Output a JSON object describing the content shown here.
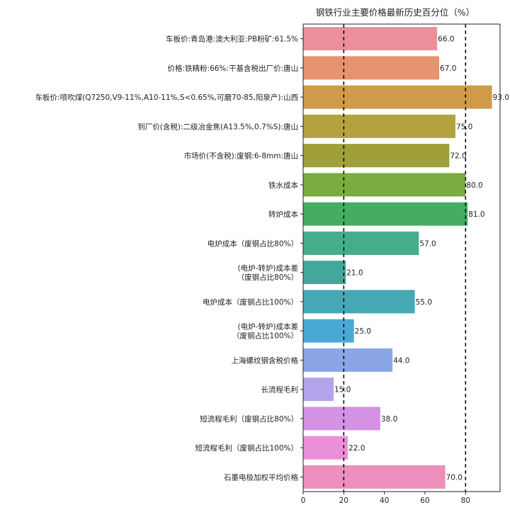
{
  "chart_data": {
    "type": "bar",
    "orientation": "horizontal",
    "title": "钢铁行业主要价格最新历史百分位（%）",
    "xlabel": "",
    "ylabel": "",
    "xlim": [
      0,
      97
    ],
    "xticks": [
      0,
      20,
      40,
      60,
      80
    ],
    "reference_lines": [
      20,
      80
    ],
    "grid": false,
    "categories": [
      [
        "车板价:青岛港:澳大利亚:PB粉矿:61.5%"
      ],
      [
        "价格:铁精粉:66%:干基含税出厂价:唐山"
      ],
      [
        "车板价:喷吹煤(Q7250,V9-11%,A10-11%,S<0.65%,可磨70-85,阳泉产):山西"
      ],
      [
        "到厂价(含税):二级冶金焦(A13.5%,0.7%S):唐山"
      ],
      [
        "市场价(不含税):废钢:6-8mm:唐山"
      ],
      [
        "铁水成本"
      ],
      [
        "转炉成本"
      ],
      [
        "电炉成本（废钢占比80%）"
      ],
      [
        "(电炉-转炉)成本差",
        "（废钢占比80%）"
      ],
      [
        "电炉成本（废钢占比100%）"
      ],
      [
        "(电炉-转炉)成本差",
        "（废钢占比100%）"
      ],
      [
        "上海螺纹钢含税价格"
      ],
      [
        "长流程毛利"
      ],
      [
        "短流程毛利（废钢占比80%）"
      ],
      [
        "短流程毛利（废钢占比100%）"
      ],
      [
        "石墨电极加权平均价格"
      ]
    ],
    "values": [
      66.0,
      67.0,
      93.0,
      75.0,
      72.0,
      80.0,
      81.0,
      57.0,
      21.0,
      55.0,
      25.0,
      44.0,
      15.0,
      38.0,
      22.0,
      70.0
    ],
    "value_labels": [
      "66.0",
      "67.0",
      "93.0",
      "75.0",
      "72.0",
      "80.0",
      "81.0",
      "57.0",
      "21.0",
      "55.0",
      "25.0",
      "44.0",
      "15.0",
      "38.0",
      "22.0",
      "70.0"
    ],
    "colors": [
      "#ec8f9a",
      "#e8936f",
      "#cf9a4a",
      "#b3a33f",
      "#9fa03a",
      "#7aac3f",
      "#44ad62",
      "#45ad8c",
      "#43a89a",
      "#46a8b5",
      "#4aa9d4",
      "#8aa6e6",
      "#b3a3ea",
      "#d492e4",
      "#ea8fd8",
      "#ec8fbc"
    ]
  }
}
